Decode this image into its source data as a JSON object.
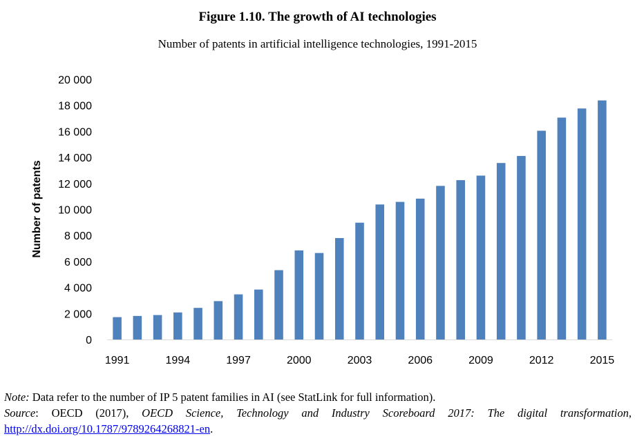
{
  "figure": {
    "title": "Figure 1.10. The growth of AI technologies",
    "subtitle": "Number of patents in artificial intelligence technologies, 1991-2015"
  },
  "note": {
    "note_label": "Note:",
    "note_text": " Data refer to the number of IP 5 patent families in AI (see StatLink for full information).",
    "source_label": "Source",
    "source_text1": ": OECD (2017), ",
    "source_title": "OECD Science, Technology and Industry Scoreboard 2017: The digital transformation",
    "source_text2": ", ",
    "link": "http://dx.doi.org/10.1787/9789264268821-en",
    "end": "."
  },
  "colors": {
    "bar": "#4f81bd",
    "axis": "#d9d9d9"
  },
  "chart_data": {
    "type": "bar",
    "ylabel": "Number of patents",
    "xlabel": "",
    "ylim": [
      0,
      20000
    ],
    "yticks": [
      "0",
      "2 000",
      "4 000",
      "6 000",
      "8 000",
      "10 000",
      "12 000",
      "14 000",
      "16 000",
      "18 000",
      "20 000"
    ],
    "ytick_values": [
      0,
      2000,
      4000,
      6000,
      8000,
      10000,
      12000,
      14000,
      16000,
      18000,
      20000
    ],
    "xtick_labels": [
      "1991",
      "1994",
      "1997",
      "2000",
      "2003",
      "2006",
      "2009",
      "2012",
      "2015"
    ],
    "categories": [
      "1991",
      "1992",
      "1993",
      "1994",
      "1995",
      "1996",
      "1997",
      "1998",
      "1999",
      "2000",
      "2001",
      "2002",
      "2003",
      "2004",
      "2005",
      "2006",
      "2007",
      "2008",
      "2009",
      "2010",
      "2011",
      "2012",
      "2013",
      "2014",
      "2015"
    ],
    "values": [
      1720,
      1810,
      1880,
      2080,
      2430,
      2950,
      3470,
      3840,
      5330,
      6850,
      6650,
      7800,
      8980,
      10380,
      10580,
      10830,
      11810,
      12250,
      12600,
      13570,
      14110,
      16050,
      17060,
      17760,
      18380
    ]
  }
}
